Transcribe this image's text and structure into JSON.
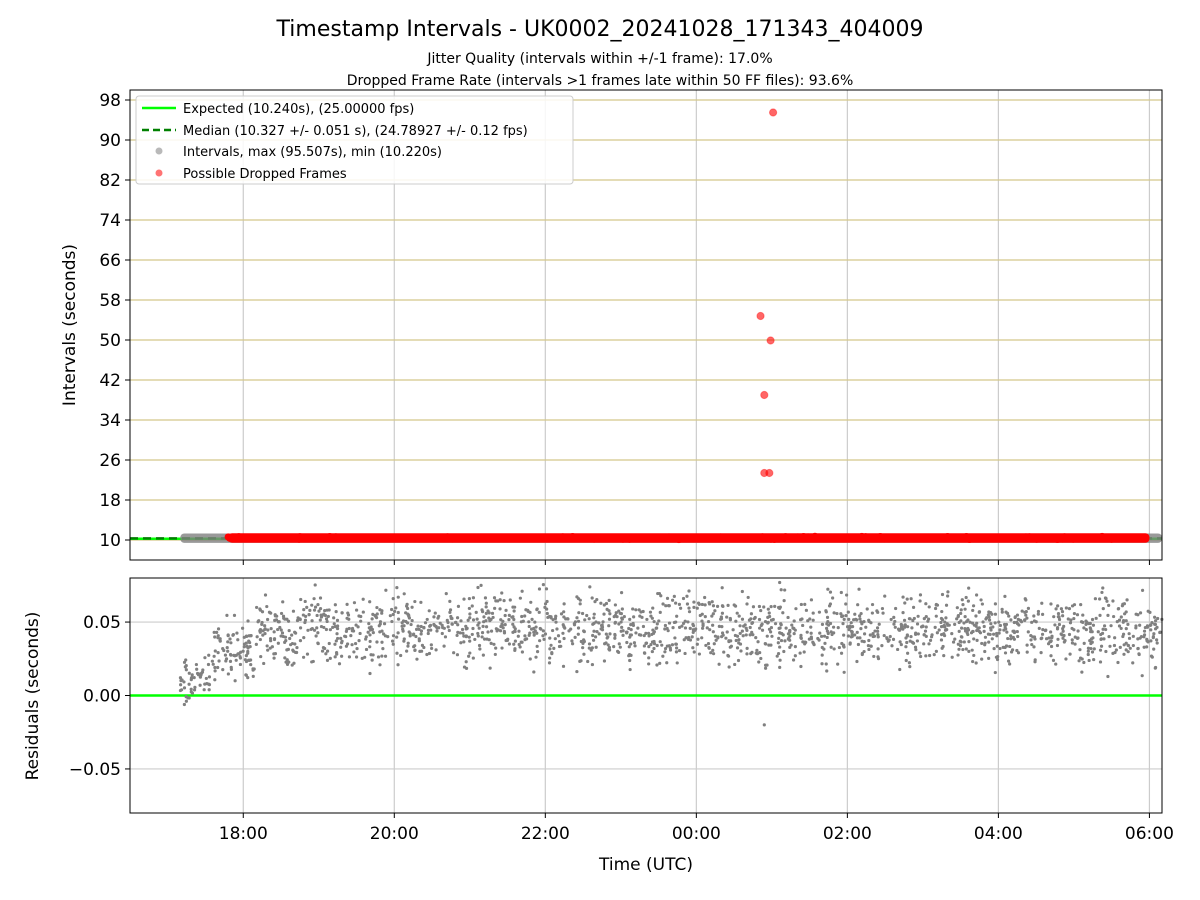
{
  "title": "Timestamp Intervals - UK0002_20241028_171343_404009",
  "subtitle_1": "Jitter Quality (intervals within +/-1 frame): 17.0%",
  "subtitle_2": "Dropped Frame Rate (intervals >1 frames late within 50 FF files): 93.6%",
  "colors": {
    "expected": "#00ff00",
    "median": "#008000",
    "dropped": "#ff0000",
    "intervals": "#808080",
    "hgrid_top": "#d4c88a",
    "grid": "#cccccc"
  },
  "chart_data": [
    {
      "type": "scatter",
      "ylabel": "Intervals (seconds)",
      "xlim": [
        "16:30",
        "06:10"
      ],
      "ylim": [
        6,
        100
      ],
      "yticks": [
        10,
        18,
        26,
        34,
        42,
        50,
        58,
        66,
        74,
        82,
        90,
        98
      ],
      "ytick_labels": [
        "10",
        "18",
        "26",
        "34",
        "42",
        "50",
        "58",
        "66",
        "74",
        "82",
        "90",
        "98"
      ],
      "xticks": [
        "18:00",
        "20:00",
        "22:00",
        "00:00",
        "02:00",
        "04:00",
        "06:00"
      ],
      "grid": true,
      "legend_position": "top-left",
      "legend": [
        "Expected (10.240s), (25.00000 fps)",
        "Median (10.327 +/- 0.051 s), (24.78927 +/- 0.12 fps)",
        "Intervals, max (95.507s), min (10.220s)",
        "Possible Dropped Frames"
      ],
      "expected_interval": 10.24,
      "median_interval": 10.327,
      "series": [
        {
          "name": "Intervals, max (95.507s), min (10.220s)",
          "band": {
            "start": "17:10",
            "end": "06:10",
            "ymin": 10.22,
            "ymax": 10.5
          }
        },
        {
          "name": "Possible Dropped Frames",
          "band": {
            "start": "17:48",
            "end": "06:00",
            "ymin": 10.25,
            "ymax": 10.55
          },
          "outliers": [
            {
              "x": "00:51",
              "y": 54.8
            },
            {
              "x": "00:54",
              "y": 39.0
            },
            {
              "x": "00:54",
              "y": 23.4
            },
            {
              "x": "00:58",
              "y": 23.4
            },
            {
              "x": "00:59",
              "y": 49.9
            },
            {
              "x": "01:01",
              "y": 95.5
            }
          ]
        }
      ]
    },
    {
      "type": "scatter",
      "ylabel": "Residuals (seconds)",
      "xlabel": "Time (UTC)",
      "xlim": [
        "16:30",
        "06:10"
      ],
      "ylim": [
        -0.08,
        0.08
      ],
      "yticks": [
        -0.05,
        0.0,
        0.05
      ],
      "ytick_labels": [
        "−0.05",
        "0.00",
        "0.05"
      ],
      "xticks": [
        "18:00",
        "20:00",
        "22:00",
        "00:00",
        "02:00",
        "04:00",
        "06:00"
      ],
      "xtick_labels": [
        "18:00",
        "20:00",
        "22:00",
        "00:00",
        "02:00",
        "04:00",
        "06:00"
      ],
      "grid": true,
      "zero_line": 0.0,
      "series": [
        {
          "name": "residuals",
          "start": "17:10",
          "end": "06:10",
          "mean": 0.045,
          "spread": 0.035,
          "outliers": [
            {
              "x": "00:54",
              "y": -0.02
            }
          ]
        }
      ]
    }
  ]
}
